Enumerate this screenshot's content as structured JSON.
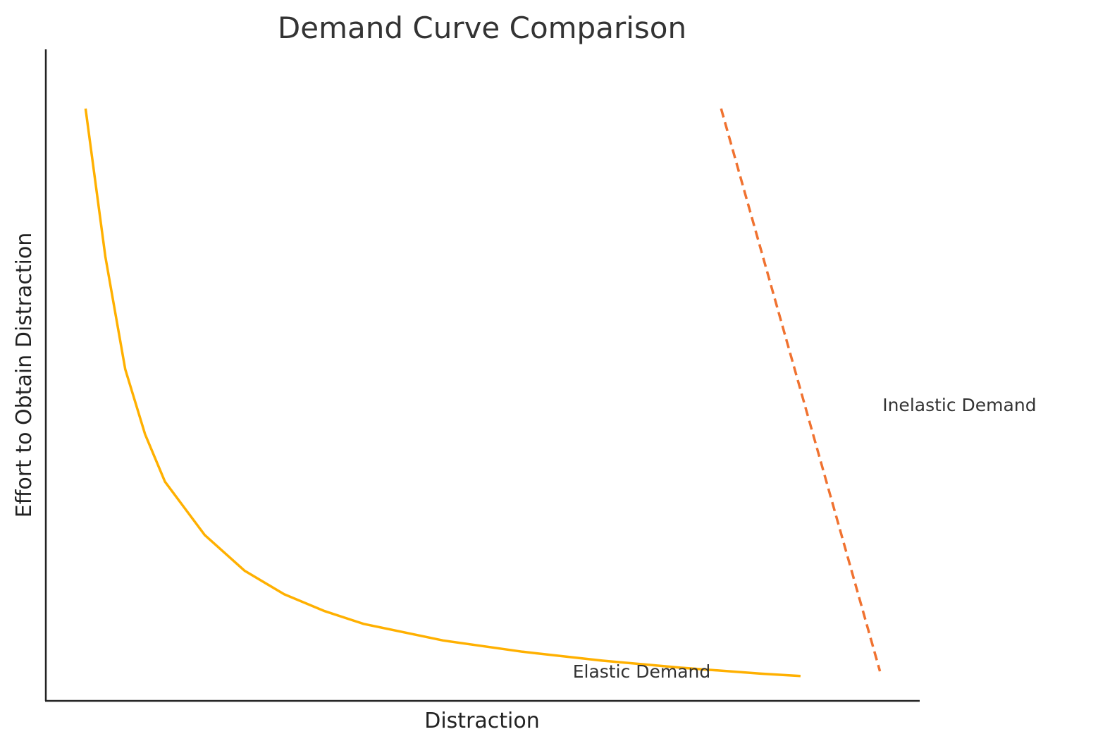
{
  "chart_data": {
    "type": "line",
    "title": "Demand Curve Comparison",
    "xlabel": "Distraction",
    "ylabel": "Effort to Obtain Distraction",
    "grid": false,
    "legend": "none",
    "ticks_shown": false,
    "xlim": [
      0,
      11
    ],
    "ylim": [
      0,
      11
    ],
    "series": [
      {
        "color": "#FFB000",
        "line_style": "solid",
        "x": [
          0.5,
          0.75,
          1.0,
          1.25,
          1.5,
          2.0,
          2.5,
          3.0,
          3.5,
          4.0,
          5.0,
          6.0,
          7.0,
          8.0,
          9.0,
          9.5
        ],
        "y": [
          10.0,
          7.5,
          5.6,
          4.5,
          3.7,
          2.8,
          2.2,
          1.8,
          1.52,
          1.3,
          1.02,
          0.83,
          0.68,
          0.56,
          0.46,
          0.42
        ]
      },
      {
        "color": "#F07230",
        "line_style": "dashed",
        "x": [
          8.5,
          10.5
        ],
        "y": [
          10.0,
          0.5
        ]
      }
    ],
    "annotations": [
      {
        "text": "Elastic Demand",
        "x": 7.5,
        "y": 0.5
      },
      {
        "text": "Inelastic Demand",
        "x": 11.5,
        "y": 5.0
      }
    ]
  }
}
